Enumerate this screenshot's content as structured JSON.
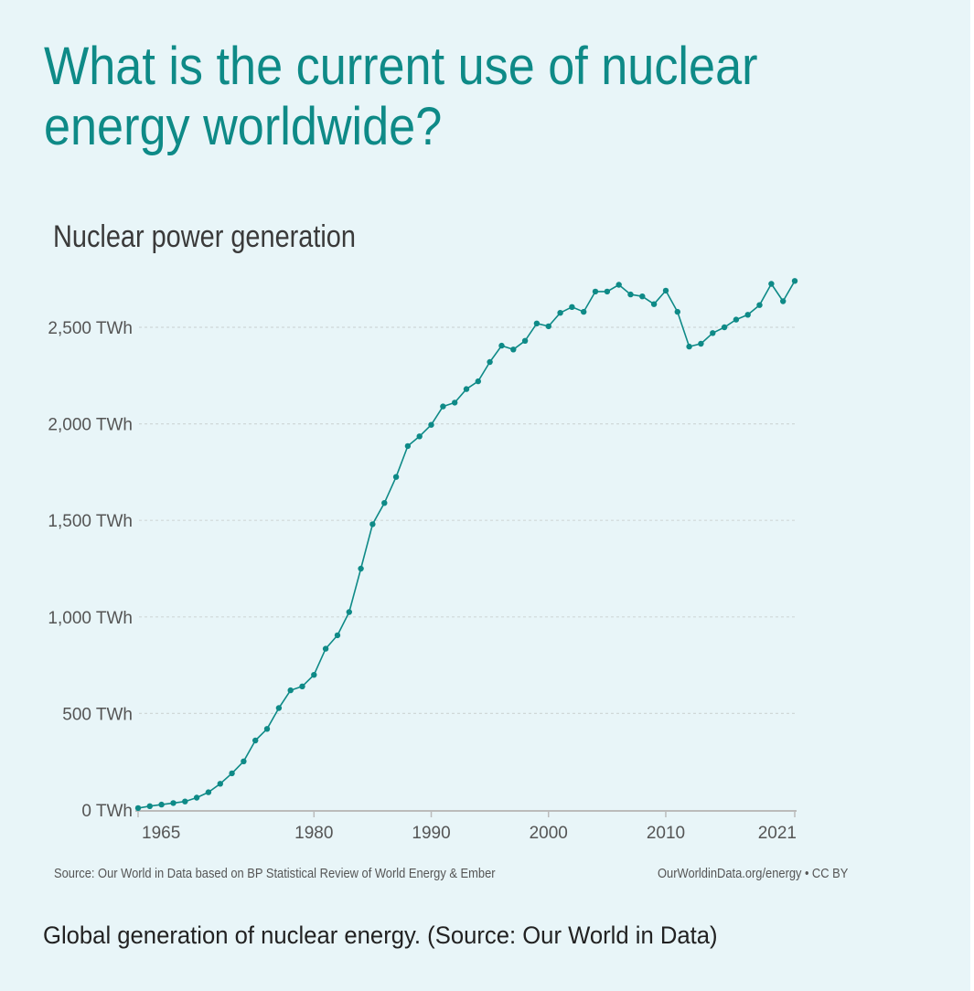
{
  "headline": "What is the current use of nuclear energy worldwide?",
  "chart_data": {
    "type": "line",
    "title": "Nuclear power generation",
    "xlabel": "",
    "ylabel": "",
    "x": [
      1965,
      1966,
      1967,
      1968,
      1969,
      1970,
      1971,
      1972,
      1973,
      1974,
      1975,
      1976,
      1977,
      1978,
      1979,
      1980,
      1981,
      1982,
      1983,
      1984,
      1985,
      1986,
      1987,
      1988,
      1989,
      1990,
      1991,
      1992,
      1993,
      1994,
      1995,
      1996,
      1997,
      1998,
      1999,
      2000,
      2001,
      2002,
      2003,
      2004,
      2005,
      2006,
      2007,
      2008,
      2009,
      2010,
      2011,
      2012,
      2013,
      2014,
      2015,
      2016,
      2017,
      2018,
      2019,
      2020,
      2021
    ],
    "series": [
      {
        "values": [
          10,
          20,
          28,
          36,
          44,
          64,
          92,
          136,
          190,
          252,
          360,
          420,
          528,
          620,
          640,
          700,
          835,
          905,
          1025,
          1250,
          1480,
          1590,
          1725,
          1885,
          1935,
          1995,
          2090,
          2110,
          2180,
          2220,
          2320,
          2405,
          2385,
          2430,
          2520,
          2505,
          2575,
          2605,
          2580,
          2685,
          2685,
          2720,
          2670,
          2660,
          2620,
          2690,
          2580,
          2400,
          2415,
          2470,
          2500,
          2540,
          2565,
          2615,
          2725,
          2635,
          2740
        ]
      }
    ],
    "ylim": [
      0,
      2750
    ],
    "yticks": [
      {
        "value": 0,
        "label": "0 TWh"
      },
      {
        "value": 500,
        "label": "500 TWh"
      },
      {
        "value": 1000,
        "label": "1,000 TWh"
      },
      {
        "value": 1500,
        "label": "1,500 TWh"
      },
      {
        "value": 2000,
        "label": "2,000 TWh"
      },
      {
        "value": 2500,
        "label": "2,500 TWh"
      }
    ],
    "xticks": [
      1965,
      1980,
      1990,
      2000,
      2010,
      2021
    ],
    "grid": "horizontal dotted",
    "colors": {
      "line": "#0e8a87",
      "grid": "#cfd8d8",
      "axis": "#bbbbbb"
    }
  },
  "source_note": "Source: Our World in Data based on BP Statistical Review of World Energy & Ember",
  "credit": {
    "url": "OurWorldinData.org/energy",
    "separator": "•",
    "license": "CC BY"
  },
  "caption": "Global generation of nuclear energy. (Source: Our World in Data)",
  "colors": {
    "background": "#e8f5f8",
    "headline": "#0e8a87"
  }
}
